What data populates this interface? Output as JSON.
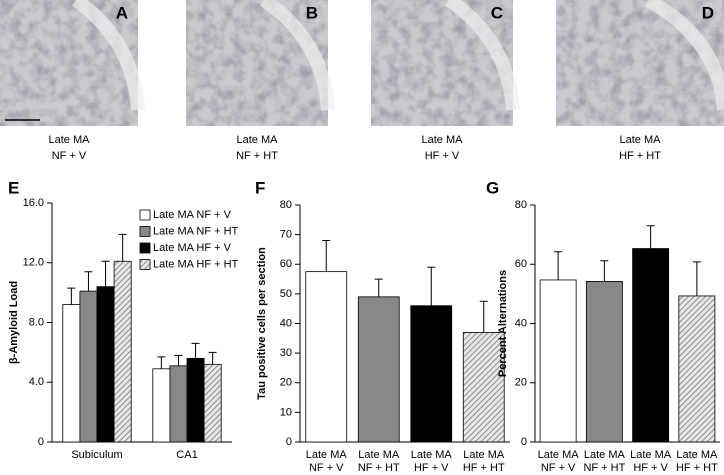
{
  "panels": [
    {
      "label": "A",
      "caption": [
        "Late MA",
        "NF + V"
      ]
    },
    {
      "label": "B",
      "caption": [
        "Late MA",
        "NF + HT"
      ]
    },
    {
      "label": "C",
      "caption": [
        "Late MA",
        "HF + V"
      ]
    },
    {
      "label": "D",
      "caption": [
        "Late MA",
        "HF + HT"
      ]
    }
  ],
  "chart_data": [
    {
      "type": "bar",
      "panel_label": "E",
      "y_label": "β-Amyloid Load",
      "categories": [
        [
          "Subiculum"
        ],
        [
          "CA1"
        ]
      ],
      "series": [
        {
          "name": "Late MA NF + V",
          "color": "#ffffff",
          "values": [
            9.2,
            4.9
          ],
          "errors": [
            1.1,
            0.8
          ]
        },
        {
          "name": "Late MA NF + HT",
          "color": "#888888",
          "values": [
            10.1,
            5.1
          ],
          "errors": [
            1.3,
            0.7
          ]
        },
        {
          "name": "Late MA HF + V",
          "color": "#000000",
          "values": [
            10.4,
            5.6
          ],
          "errors": [
            1.7,
            1.0
          ]
        },
        {
          "name": "Late MA HF + HT",
          "color": "#bbbbbb",
          "pattern": "hatch",
          "values": [
            12.1,
            5.2
          ],
          "errors": [
            1.8,
            0.8
          ]
        }
      ],
      "ylim": [
        0,
        16
      ],
      "yticks": [
        0,
        {
          "value": 4,
          "label": "4.0"
        },
        {
          "value": 8,
          "label": "8.0"
        },
        {
          "value": 12,
          "label": "12.0"
        },
        {
          "value": 16,
          "label": "16.0"
        }
      ],
      "legend": "top-right"
    },
    {
      "type": "bar",
      "panel_label": "F",
      "y_label": "Tau positive cells per section",
      "categories": [
        [
          "Late MA",
          "NF + V"
        ],
        [
          "Late MA",
          "NF + HT"
        ],
        [
          "Late MA",
          "HF + V"
        ],
        [
          "Late MA",
          "HF + HT"
        ]
      ],
      "values": [
        57.5,
        49,
        46,
        37
      ],
      "errors": [
        10.5,
        6,
        13,
        10.5
      ],
      "colors": [
        "#ffffff",
        "#888888",
        "#000000",
        "#bbbbbb"
      ],
      "patterns": [
        null,
        null,
        null,
        "hatch"
      ],
      "ylim": [
        0,
        80
      ],
      "yticks": [
        0,
        10,
        20,
        30,
        40,
        50,
        60,
        70,
        80
      ]
    },
    {
      "type": "bar",
      "panel_label": "G",
      "y_label": "Percent Alternations",
      "categories": [
        [
          "Late MA",
          "NF + V"
        ],
        [
          "Late MA",
          "NF + HT"
        ],
        [
          "Late MA",
          "HF + V"
        ],
        [
          "Late MA",
          "HF + HT"
        ]
      ],
      "values": [
        54.7,
        54.2,
        65.3,
        49.3
      ],
      "errors": [
        9.5,
        7,
        7.7,
        11.5
      ],
      "colors": [
        "#ffffff",
        "#888888",
        "#000000",
        "#bbbbbb"
      ],
      "patterns": [
        null,
        null,
        null,
        "hatch"
      ],
      "ylim": [
        0,
        80
      ],
      "yticks": [
        0,
        20,
        40,
        60,
        80
      ]
    }
  ]
}
